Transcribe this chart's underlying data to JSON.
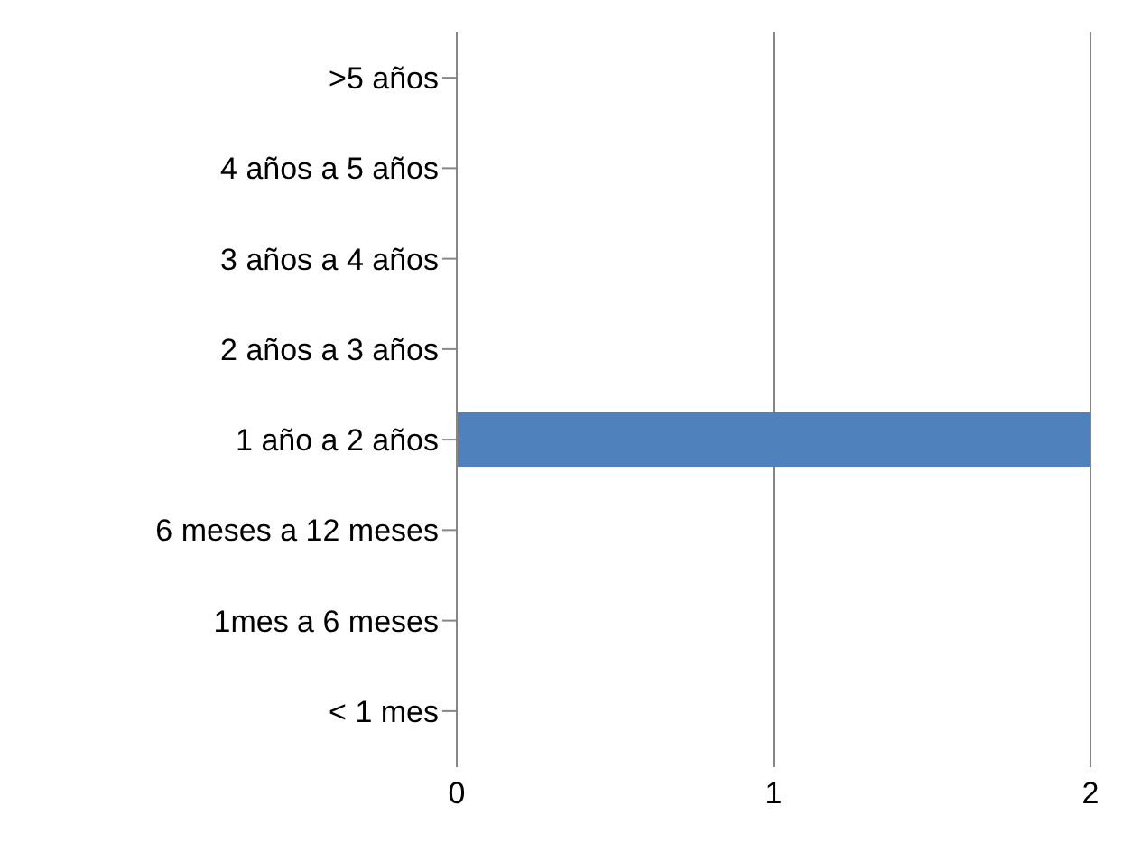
{
  "chart_data": {
    "type": "bar",
    "orientation": "horizontal",
    "categories": [
      ">5 años",
      "4 años a 5 años",
      "3 años a 4 años",
      "2 años a 3 años",
      "1 año a 2 años",
      "6 meses a 12 meses",
      "1mes a 6 meses",
      "< 1 mes"
    ],
    "values": [
      0,
      0,
      0,
      0,
      2,
      0,
      0,
      0
    ],
    "color": "#4f81bd",
    "xlim": [
      0,
      2
    ],
    "xticks": [
      0,
      1,
      2
    ],
    "grid": "x"
  }
}
